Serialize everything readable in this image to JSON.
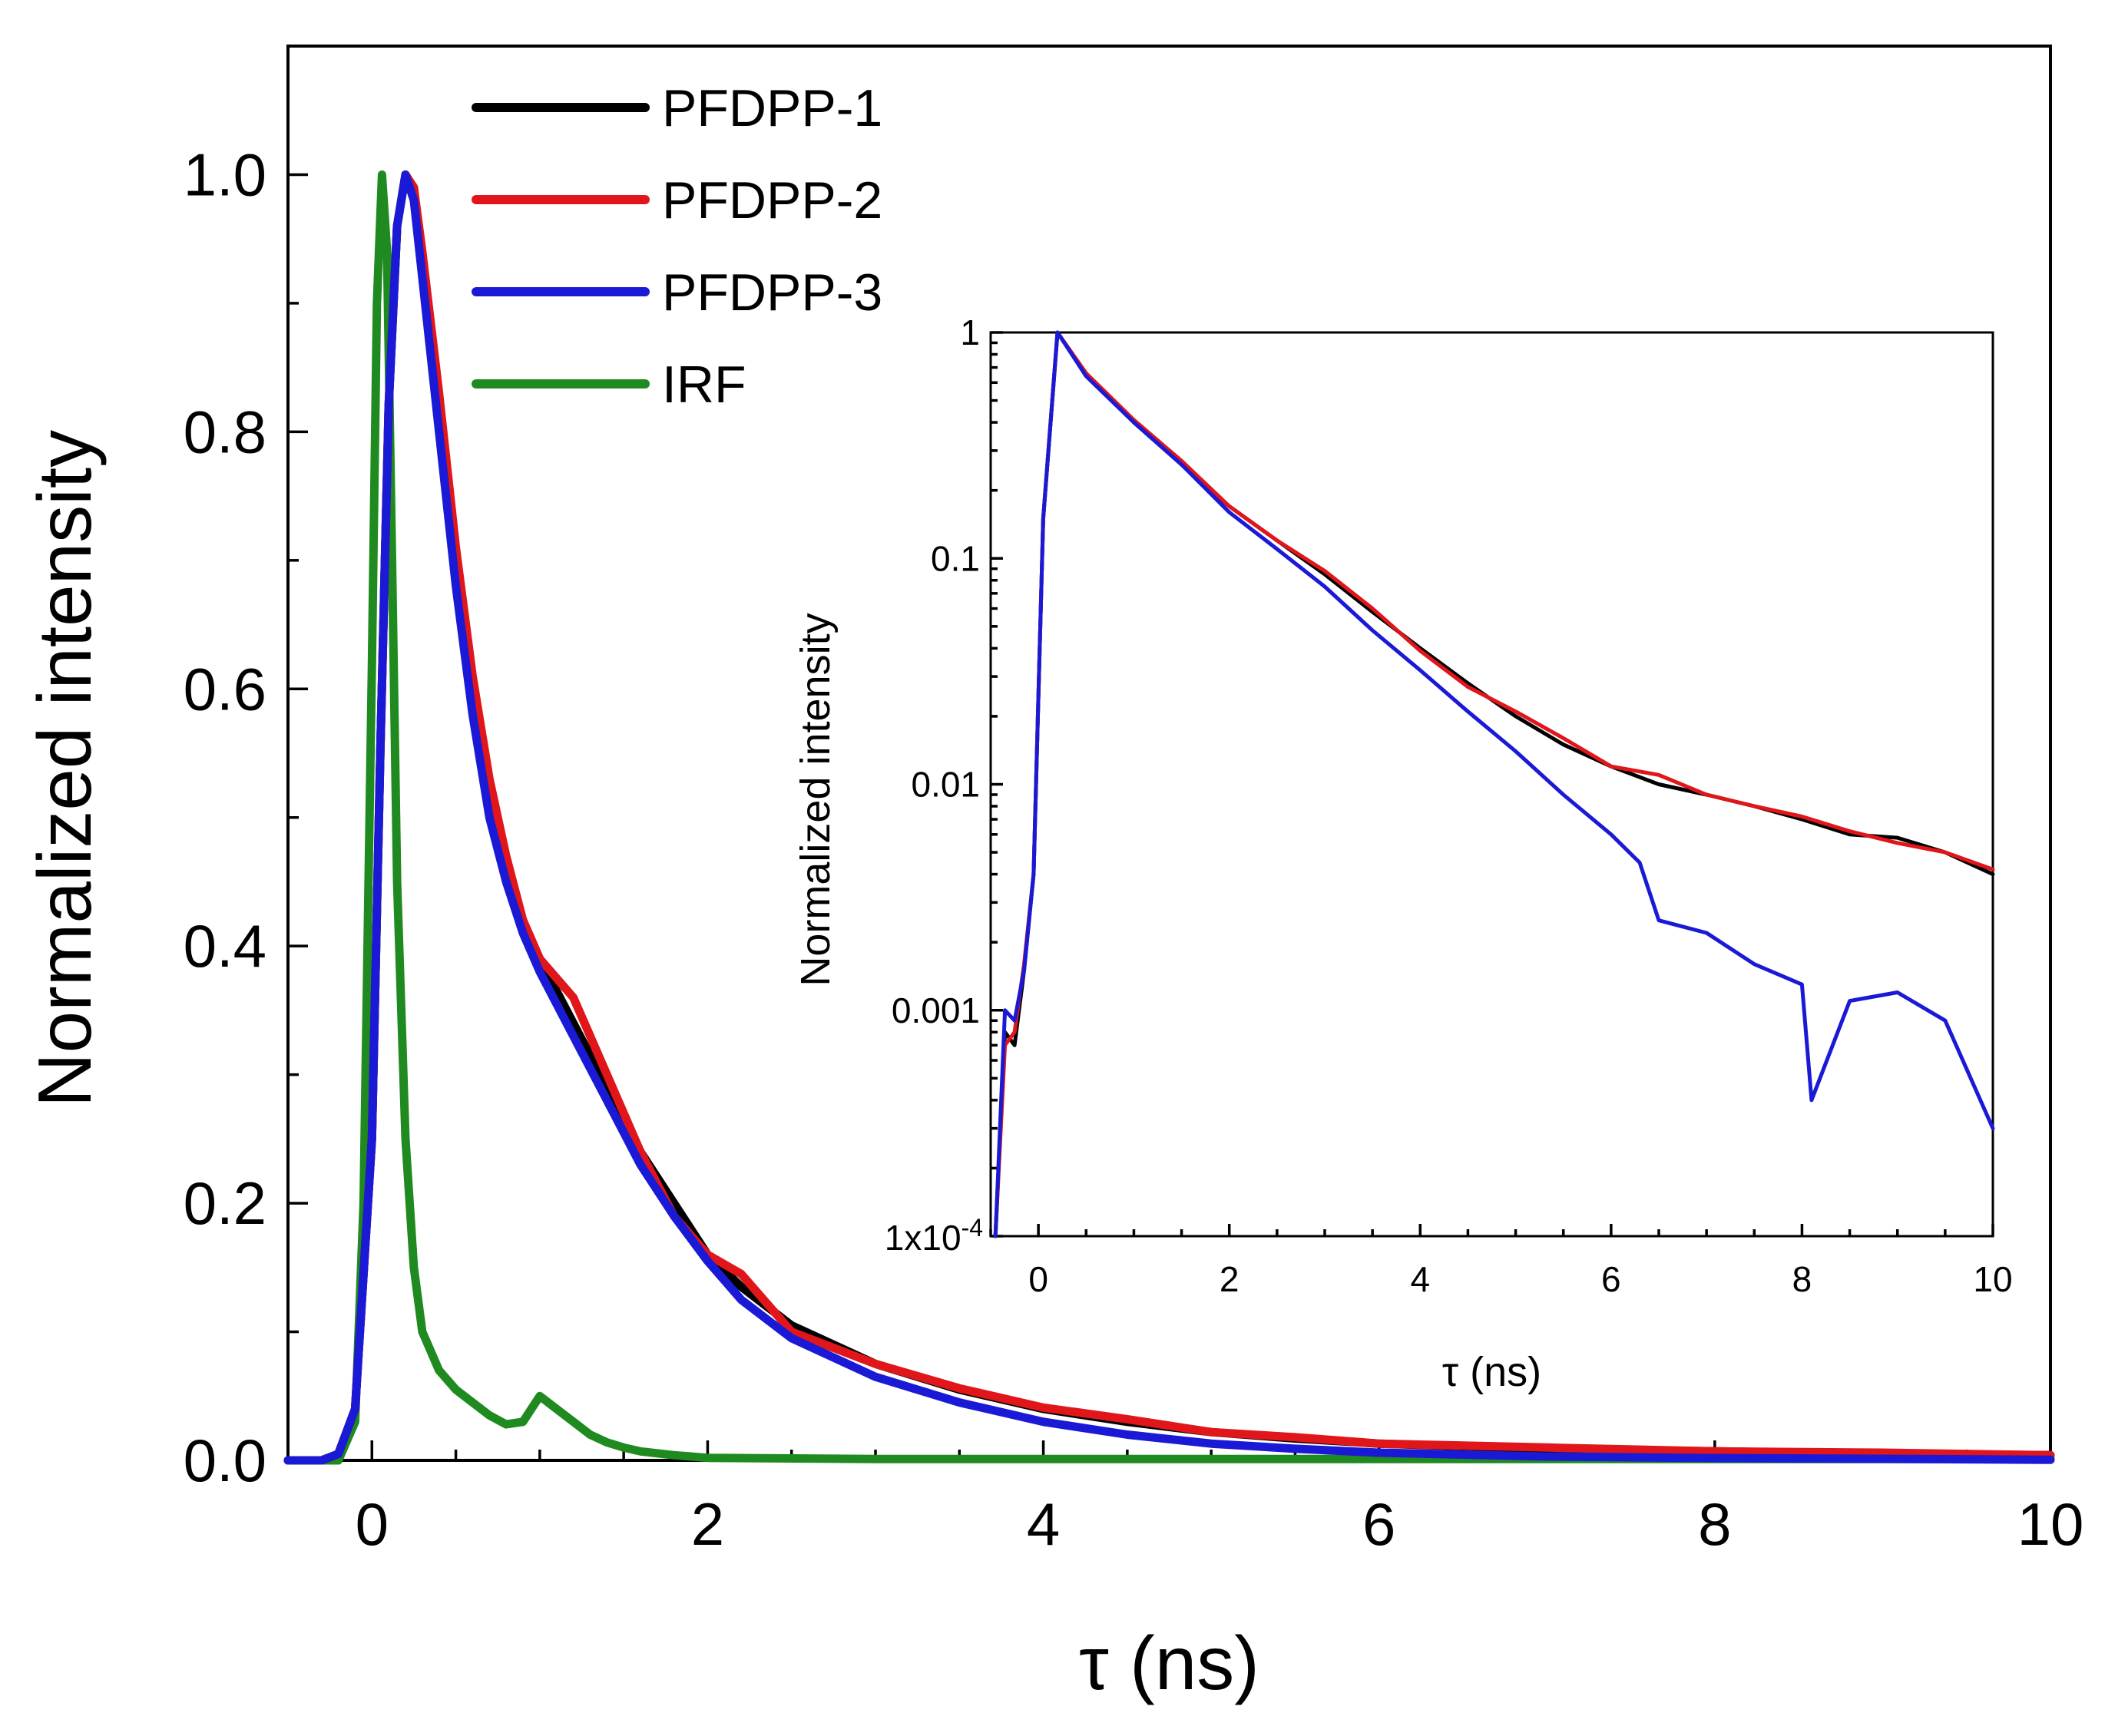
{
  "chart_data": [
    {
      "type": "line",
      "title": "",
      "xlabel": "τ (ns)",
      "ylabel": "Normalized intensity",
      "xlim": [
        -0.5,
        10
      ],
      "ylim": [
        0,
        1.1
      ],
      "x_ticks": [
        0,
        2,
        4,
        6,
        8,
        10
      ],
      "x_tick_labels": [
        "0",
        "2",
        "4",
        "6",
        "8",
        "10"
      ],
      "y_ticks": [
        0,
        0.2,
        0.4,
        0.6,
        0.8,
        1.0
      ],
      "y_tick_labels": [
        "0.0",
        "0.2",
        "0.4",
        "0.6",
        "0.8",
        "1.0"
      ],
      "legend_position": "top-left",
      "series": [
        {
          "name": "PFDPP-1",
          "color": "#000000",
          "x": [
            -0.5,
            -0.3,
            -0.2,
            -0.1,
            0.0,
            0.05,
            0.1,
            0.15,
            0.2,
            0.25,
            0.3,
            0.4,
            0.5,
            0.6,
            0.7,
            0.8,
            0.9,
            1.0,
            1.2,
            1.4,
            1.6,
            1.8,
            2.0,
            2.2,
            2.5,
            3.0,
            3.5,
            4.0,
            4.5,
            5.0,
            5.5,
            6.0,
            7.0,
            8.0,
            9.0,
            10.0
          ],
          "values": [
            0.0,
            0.0,
            0.005,
            0.04,
            0.25,
            0.55,
            0.82,
            0.96,
            1.0,
            0.99,
            0.93,
            0.82,
            0.7,
            0.6,
            0.52,
            0.46,
            0.42,
            0.39,
            0.34,
            0.29,
            0.24,
            0.2,
            0.16,
            0.135,
            0.105,
            0.075,
            0.055,
            0.04,
            0.03,
            0.022,
            0.017,
            0.013,
            0.009,
            0.007,
            0.005,
            0.004
          ]
        },
        {
          "name": "PFDPP-2",
          "color": "#e0161b",
          "x": [
            -0.5,
            -0.3,
            -0.2,
            -0.1,
            0.0,
            0.05,
            0.1,
            0.15,
            0.2,
            0.25,
            0.3,
            0.4,
            0.5,
            0.6,
            0.7,
            0.8,
            0.9,
            1.0,
            1.2,
            1.4,
            1.6,
            1.8,
            2.0,
            2.2,
            2.5,
            3.0,
            3.5,
            4.0,
            4.5,
            5.0,
            5.5,
            6.0,
            7.0,
            8.0,
            9.0,
            10.0
          ],
          "values": [
            0.0,
            0.0,
            0.005,
            0.04,
            0.25,
            0.55,
            0.82,
            0.96,
            1.0,
            0.99,
            0.94,
            0.83,
            0.71,
            0.61,
            0.53,
            0.47,
            0.42,
            0.39,
            0.36,
            0.3,
            0.24,
            0.19,
            0.16,
            0.145,
            0.1,
            0.075,
            0.056,
            0.041,
            0.032,
            0.022,
            0.018,
            0.013,
            0.01,
            0.007,
            0.006,
            0.004
          ]
        },
        {
          "name": "PFDPP-3",
          "color": "#1a1ad6",
          "x": [
            -0.5,
            -0.3,
            -0.2,
            -0.1,
            0.0,
            0.05,
            0.1,
            0.15,
            0.2,
            0.25,
            0.3,
            0.4,
            0.5,
            0.6,
            0.7,
            0.8,
            0.9,
            1.0,
            1.2,
            1.4,
            1.6,
            1.8,
            2.0,
            2.2,
            2.5,
            3.0,
            3.5,
            4.0,
            4.5,
            5.0,
            5.5,
            6.0,
            7.0,
            8.0,
            9.0,
            10.0
          ],
          "values": [
            0.0,
            0.0,
            0.005,
            0.04,
            0.25,
            0.55,
            0.82,
            0.96,
            1.0,
            0.98,
            0.92,
            0.8,
            0.68,
            0.58,
            0.5,
            0.45,
            0.41,
            0.38,
            0.33,
            0.28,
            0.23,
            0.19,
            0.155,
            0.125,
            0.095,
            0.065,
            0.045,
            0.03,
            0.02,
            0.013,
            0.009,
            0.006,
            0.003,
            0.0018,
            0.0012,
            0.0005
          ]
        },
        {
          "name": "IRF",
          "color": "#1f8a1f",
          "x": [
            -0.5,
            -0.2,
            -0.1,
            -0.05,
            0.0,
            0.03,
            0.06,
            0.09,
            0.12,
            0.15,
            0.2,
            0.25,
            0.3,
            0.4,
            0.5,
            0.6,
            0.7,
            0.8,
            0.9,
            0.95,
            1.0,
            1.05,
            1.1,
            1.2,
            1.3,
            1.4,
            1.5,
            1.6,
            1.8,
            2.0,
            3.0,
            4.0,
            6.0,
            8.0,
            10.0
          ],
          "values": [
            0.0,
            0.0,
            0.03,
            0.2,
            0.62,
            0.9,
            1.0,
            0.94,
            0.7,
            0.45,
            0.25,
            0.15,
            0.1,
            0.07,
            0.055,
            0.045,
            0.035,
            0.028,
            0.03,
            0.04,
            0.05,
            0.045,
            0.04,
            0.03,
            0.02,
            0.014,
            0.01,
            0.007,
            0.004,
            0.002,
            0.001,
            0.001,
            0.001,
            0.001,
            0.001
          ]
        }
      ]
    },
    {
      "type": "line",
      "title": "",
      "xlabel": "τ (ns)",
      "ylabel": "Normalized intensity",
      "y_scale": "log",
      "xlim": [
        -0.5,
        10
      ],
      "ylim": [
        0.0001,
        1
      ],
      "x_ticks": [
        0,
        2,
        4,
        6,
        8,
        10
      ],
      "x_tick_labels": [
        "0",
        "2",
        "4",
        "6",
        "8",
        "10"
      ],
      "y_ticks": [
        0.0001,
        0.001,
        0.01,
        0.1,
        1
      ],
      "y_tick_labels": [
        "1x10-4",
        "0.001",
        "0.01",
        "0.1",
        "1"
      ],
      "y_tick_first_base": "1x10",
      "y_tick_first_exp": "-4",
      "legend_position": "none",
      "series": [
        {
          "name": "PFDPP-1",
          "color": "#000000",
          "x": [
            -0.45,
            -0.35,
            -0.25,
            -0.15,
            -0.05,
            0.05,
            0.2,
            0.5,
            1.0,
            1.5,
            2.0,
            2.5,
            3.0,
            3.5,
            4.0,
            4.5,
            5.0,
            5.5,
            6.0,
            6.5,
            7.0,
            7.5,
            8.0,
            8.5,
            9.0,
            9.5,
            10.0
          ],
          "values": [
            0.0001,
            0.0008,
            0.0007,
            0.0015,
            0.004,
            0.15,
            1.0,
            0.65,
            0.4,
            0.26,
            0.17,
            0.12,
            0.085,
            0.058,
            0.04,
            0.028,
            0.02,
            0.015,
            0.012,
            0.01,
            0.009,
            0.008,
            0.007,
            0.006,
            0.0058,
            0.005,
            0.004
          ]
        },
        {
          "name": "PFDPP-2",
          "color": "#e0161b",
          "x": [
            -0.45,
            -0.35,
            -0.25,
            -0.15,
            -0.05,
            0.05,
            0.2,
            0.5,
            1.0,
            1.5,
            2.0,
            2.5,
            3.0,
            3.5,
            4.0,
            4.5,
            5.0,
            5.5,
            6.0,
            6.5,
            7.0,
            7.5,
            8.0,
            8.5,
            9.0,
            9.5,
            10.0
          ],
          "values": [
            0.0001,
            0.0007,
            0.0008,
            0.0016,
            0.004,
            0.15,
            1.0,
            0.66,
            0.41,
            0.27,
            0.17,
            0.12,
            0.088,
            0.06,
            0.039,
            0.027,
            0.021,
            0.016,
            0.012,
            0.011,
            0.009,
            0.008,
            0.0072,
            0.0062,
            0.0055,
            0.005,
            0.0042
          ]
        },
        {
          "name": "PFDPP-3",
          "color": "#1a1ad6",
          "x": [
            -0.45,
            -0.35,
            -0.25,
            -0.15,
            -0.05,
            0.05,
            0.2,
            0.5,
            1.0,
            1.5,
            2.0,
            2.5,
            3.0,
            3.5,
            4.0,
            4.5,
            5.0,
            5.5,
            6.0,
            6.3,
            6.5,
            7.0,
            7.5,
            8.0,
            8.1,
            8.5,
            9.0,
            9.5,
            10.0
          ],
          "values": [
            0.0001,
            0.001,
            0.0009,
            0.0015,
            0.004,
            0.15,
            1.0,
            0.64,
            0.4,
            0.26,
            0.16,
            0.11,
            0.075,
            0.048,
            0.032,
            0.021,
            0.014,
            0.009,
            0.006,
            0.0045,
            0.0025,
            0.0022,
            0.0016,
            0.0013,
            0.0004,
            0.0011,
            0.0012,
            0.0009,
            0.0003
          ]
        }
      ]
    }
  ]
}
